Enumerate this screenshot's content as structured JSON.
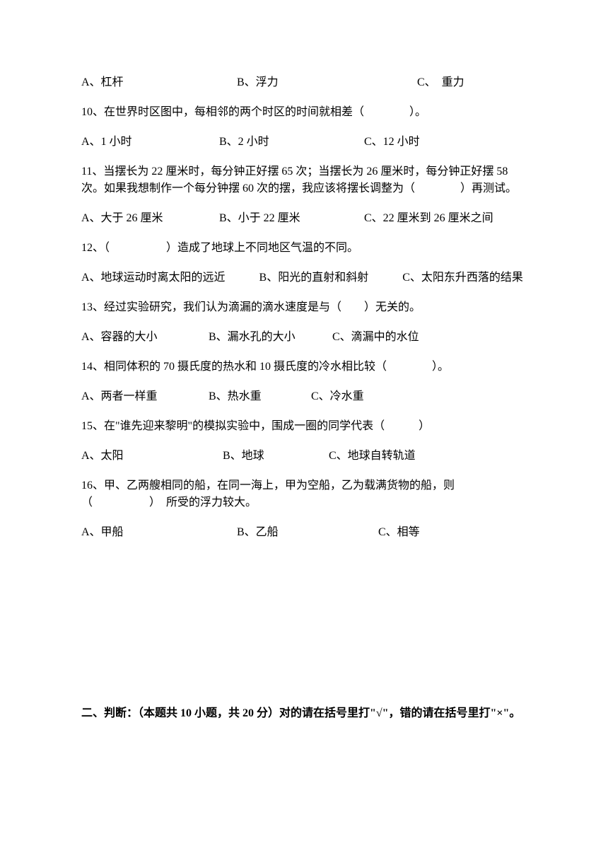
{
  "questions": {
    "q9": {
      "optA": "A、杠杆",
      "optB": "B、浮力",
      "optC": "C、　重力"
    },
    "q10": {
      "text": "10、在世界时区图中，每相邻的两个时区的时间就相差（　　　　）。",
      "optA": "A、1 小时",
      "optB": "B、2 小时",
      "optC": "C、12 小时"
    },
    "q11": {
      "text": "11、当摆长为 22 厘米时，每分钟正好摆 65 次；当摆长为 26 厘米时，每分钟正好摆 58 次。如果我想制作一个每分钟摆 60 次的摆，我应该将摆长调整为（　　　　）再测试。",
      "optA": "A、大于 26 厘米",
      "optB": "B、小于 22 厘米",
      "optC": "C、22 厘米到 26 厘米之间"
    },
    "q12": {
      "text": "12、（　　　　　）造成了地球上不同地区气温的不同。",
      "optA": "A、地球运动时离太阳的远近　　　B、阳光的直射和斜射　　　C、太阳东升西落的结果"
    },
    "q13": {
      "text": "13、经过实验研究，我们认为滴漏的滴水速度是与（　　）无关的。",
      "optA": "A、容器的大小",
      "optB": "B、漏水孔的大小",
      "optC": "C、滴漏中的水位"
    },
    "q14": {
      "text": "14、相同体积的 70 摄氏度的热水和 10 摄氏度的冷水相比较（　　　　）。",
      "optA": "A、两者一样重",
      "optB": "B、热水重",
      "optC": "C、冷水重"
    },
    "q15": {
      "text": "15、在\"谁先迎来黎明\"的模拟实验中，围成一圈的同学代表（　　　）",
      "optA": "A、太阳",
      "optB": "B、地球",
      "optC": "C、地球自转轨道"
    },
    "q16": {
      "text": "16、甲、乙两艘相同的船，在同一海上，甲为空船，乙为载满货物的船，则（　　　　　）　所受的浮力较大。",
      "optA": "A、甲船",
      "optB": "B、乙船",
      "optC": "C、相等"
    }
  },
  "section2": {
    "header": "二、判断：（本题共 10 小题，共 20 分）对的请在括号里打\"√\"，错的请在括号里打\"×\"。"
  }
}
